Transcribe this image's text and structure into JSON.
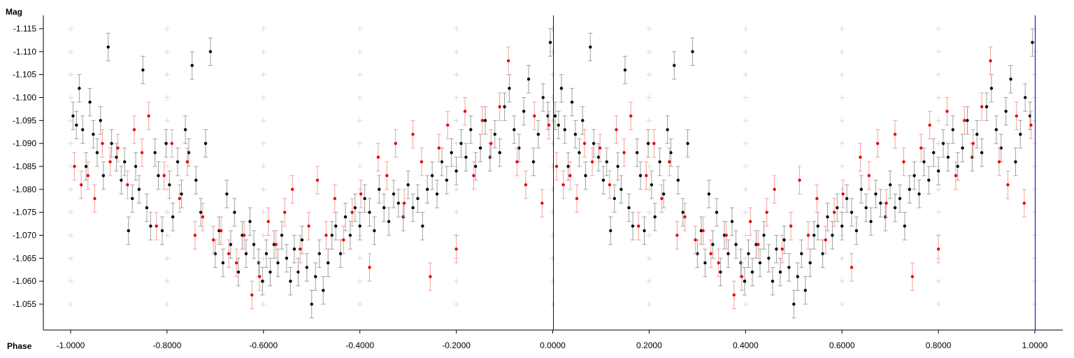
{
  "chart_data": {
    "type": "scatter",
    "title": "",
    "xlabel": "Phase",
    "ylabel": "Mag",
    "xlim": [
      -1.0,
      1.0
    ],
    "ylim": [
      -1.115,
      -1.055
    ],
    "y_axis_inverted": true,
    "grid": "light gray cross markers at tick intersections",
    "x_ticks": [
      "-1.0000",
      "-0.8000",
      "-0.6000",
      "-0.4000",
      "-0.2000",
      "0.0000",
      "0.2000",
      "0.4000",
      "0.6000",
      "0.8000",
      "1.0000"
    ],
    "y_ticks": [
      "-1.115",
      "-1.110",
      "-1.105",
      "-1.100",
      "-1.095",
      "-1.090",
      "-1.085",
      "-1.080",
      "-1.075",
      "-1.070",
      "-1.065",
      "-1.060",
      "-1.055"
    ],
    "vertical_markers": [
      0.0,
      1.0
    ],
    "marker_color": "#0000cc",
    "series": [
      {
        "color": "#000000",
        "error_color": "#a0a0a0",
        "points": [
          [
            0.005,
            -1.096,
            0.003
          ],
          [
            0.012,
            -1.094,
            0.003
          ],
          [
            0.018,
            -1.102,
            0.003
          ],
          [
            0.025,
            -1.093,
            0.003
          ],
          [
            0.032,
            -1.085,
            0.003
          ],
          [
            0.04,
            -1.099,
            0.003
          ],
          [
            0.047,
            -1.092,
            0.003
          ],
          [
            0.055,
            -1.088,
            0.003
          ],
          [
            0.062,
            -1.095,
            0.003
          ],
          [
            0.068,
            -1.083,
            0.003
          ],
          [
            0.078,
            -1.111,
            0.003
          ],
          [
            0.085,
            -1.09,
            0.003
          ],
          [
            0.095,
            -1.087,
            0.003
          ],
          [
            0.105,
            -1.082,
            0.003
          ],
          [
            0.112,
            -1.086,
            0.003
          ],
          [
            0.12,
            -1.071,
            0.003
          ],
          [
            0.128,
            -1.078,
            0.003
          ],
          [
            0.135,
            -1.085,
            0.003
          ],
          [
            0.142,
            -1.08,
            0.003
          ],
          [
            0.15,
            -1.106,
            0.003
          ],
          [
            0.158,
            -1.076,
            0.003
          ],
          [
            0.166,
            -1.072,
            0.003
          ],
          [
            0.175,
            -1.088,
            0.003
          ],
          [
            0.182,
            -1.083,
            0.003
          ],
          [
            0.19,
            -1.071,
            0.003
          ],
          [
            0.198,
            -1.09,
            0.003
          ],
          [
            0.205,
            -1.081,
            0.003
          ],
          [
            0.212,
            -1.074,
            0.003
          ],
          [
            0.222,
            -1.086,
            0.003
          ],
          [
            0.23,
            -1.079,
            0.003
          ],
          [
            0.238,
            -1.093,
            0.003
          ],
          [
            0.245,
            -1.088,
            0.003
          ],
          [
            0.252,
            -1.107,
            0.003
          ],
          [
            0.26,
            -1.082,
            0.003
          ],
          [
            0.27,
            -1.075,
            0.003
          ],
          [
            0.28,
            -1.09,
            0.003
          ],
          [
            0.29,
            -1.11,
            0.003
          ],
          [
            0.3,
            -1.066,
            0.003
          ],
          [
            0.308,
            -1.071,
            0.003
          ],
          [
            0.316,
            -1.064,
            0.003
          ],
          [
            0.324,
            -1.079,
            0.003
          ],
          [
            0.332,
            -1.068,
            0.003
          ],
          [
            0.34,
            -1.075,
            0.003
          ],
          [
            0.348,
            -1.062,
            0.003
          ],
          [
            0.356,
            -1.07,
            0.003
          ],
          [
            0.364,
            -1.066,
            0.003
          ],
          [
            0.372,
            -1.073,
            0.003
          ],
          [
            0.38,
            -1.068,
            0.003
          ],
          [
            0.39,
            -1.064,
            0.003
          ],
          [
            0.398,
            -1.06,
            0.003
          ],
          [
            0.406,
            -1.066,
            0.003
          ],
          [
            0.414,
            -1.062,
            0.003
          ],
          [
            0.422,
            -1.068,
            0.003
          ],
          [
            0.43,
            -1.064,
            0.003
          ],
          [
            0.438,
            -1.07,
            0.003
          ],
          [
            0.448,
            -1.065,
            0.003
          ],
          [
            0.456,
            -1.06,
            0.003
          ],
          [
            0.464,
            -1.067,
            0.003
          ],
          [
            0.472,
            -1.062,
            0.003
          ],
          [
            0.48,
            -1.069,
            0.003
          ],
          [
            0.49,
            -1.063,
            0.003
          ],
          [
            0.5,
            -1.055,
            0.003
          ],
          [
            0.508,
            -1.061,
            0.003
          ],
          [
            0.516,
            -1.066,
            0.003
          ],
          [
            0.524,
            -1.058,
            0.003
          ],
          [
            0.534,
            -1.064,
            0.003
          ],
          [
            0.542,
            -1.07,
            0.003
          ],
          [
            0.55,
            -1.072,
            0.003
          ],
          [
            0.56,
            -1.066,
            0.003
          ],
          [
            0.57,
            -1.074,
            0.003
          ],
          [
            0.58,
            -1.07,
            0.003
          ],
          [
            0.59,
            -1.076,
            0.003
          ],
          [
            0.6,
            -1.072,
            0.003
          ],
          [
            0.61,
            -1.078,
            0.003
          ],
          [
            0.62,
            -1.075,
            0.003
          ],
          [
            0.63,
            -1.071,
            0.003
          ],
          [
            0.64,
            -1.08,
            0.003
          ],
          [
            0.65,
            -1.076,
            0.003
          ],
          [
            0.66,
            -1.073,
            0.003
          ],
          [
            0.67,
            -1.079,
            0.003
          ],
          [
            0.68,
            -1.077,
            0.003
          ],
          [
            0.69,
            -1.074,
            0.003
          ],
          [
            0.7,
            -1.081,
            0.003
          ],
          [
            0.71,
            -1.076,
            0.003
          ],
          [
            0.72,
            -1.078,
            0.003
          ],
          [
            0.73,
            -1.072,
            0.003
          ],
          [
            0.74,
            -1.08,
            0.003
          ],
          [
            0.75,
            -1.083,
            0.003
          ],
          [
            0.76,
            -1.079,
            0.003
          ],
          [
            0.77,
            -1.086,
            0.003
          ],
          [
            0.78,
            -1.082,
            0.003
          ],
          [
            0.79,
            -1.088,
            0.003
          ],
          [
            0.8,
            -1.084,
            0.003
          ],
          [
            0.81,
            -1.09,
            0.003
          ],
          [
            0.82,
            -1.087,
            0.003
          ],
          [
            0.83,
            -1.093,
            0.003
          ],
          [
            0.84,
            -1.085,
            0.003
          ],
          [
            0.85,
            -1.089,
            0.003
          ],
          [
            0.86,
            -1.095,
            0.003
          ],
          [
            0.87,
            -1.087,
            0.003
          ],
          [
            0.88,
            -1.092,
            0.003
          ],
          [
            0.89,
            -1.088,
            0.003
          ],
          [
            0.9,
            -1.098,
            0.003
          ],
          [
            0.91,
            -1.102,
            0.003
          ],
          [
            0.92,
            -1.093,
            0.003
          ],
          [
            0.93,
            -1.089,
            0.003
          ],
          [
            0.94,
            -1.097,
            0.003
          ],
          [
            0.95,
            -1.104,
            0.003
          ],
          [
            0.96,
            -1.086,
            0.003
          ],
          [
            0.97,
            -1.092,
            0.003
          ],
          [
            0.98,
            -1.1,
            0.003
          ],
          [
            0.99,
            -1.096,
            0.003
          ],
          [
            0.995,
            -1.112,
            0.003
          ]
        ]
      },
      {
        "color": "#ee0000",
        "error_color": "#f0a0a0",
        "points": [
          [
            0.008,
            -1.085,
            0.003
          ],
          [
            0.022,
            -1.081,
            0.003
          ],
          [
            0.036,
            -1.083,
            0.003
          ],
          [
            0.05,
            -1.078,
            0.003
          ],
          [
            0.066,
            -1.09,
            0.003
          ],
          [
            0.082,
            -1.086,
            0.003
          ],
          [
            0.098,
            -1.089,
            0.003
          ],
          [
            0.118,
            -1.081,
            0.003
          ],
          [
            0.132,
            -1.093,
            0.003
          ],
          [
            0.148,
            -1.088,
            0.003
          ],
          [
            0.162,
            -1.096,
            0.003
          ],
          [
            0.178,
            -1.072,
            0.003
          ],
          [
            0.194,
            -1.083,
            0.003
          ],
          [
            0.21,
            -1.09,
            0.003
          ],
          [
            0.226,
            -1.078,
            0.003
          ],
          [
            0.242,
            -1.086,
            0.003
          ],
          [
            0.258,
            -1.07,
            0.003
          ],
          [
            0.274,
            -1.074,
            0.003
          ],
          [
            0.296,
            -1.069,
            0.003
          ],
          [
            0.312,
            -1.071,
            0.003
          ],
          [
            0.328,
            -1.066,
            0.003
          ],
          [
            0.344,
            -1.064,
            0.003
          ],
          [
            0.36,
            -1.07,
            0.003
          ],
          [
            0.376,
            -1.057,
            0.003
          ],
          [
            0.392,
            -1.061,
            0.003
          ],
          [
            0.41,
            -1.073,
            0.003
          ],
          [
            0.426,
            -1.068,
            0.003
          ],
          [
            0.444,
            -1.075,
            0.003
          ],
          [
            0.46,
            -1.08,
            0.003
          ],
          [
            0.476,
            -1.067,
            0.003
          ],
          [
            0.494,
            -1.072,
            0.003
          ],
          [
            0.512,
            -1.082,
            0.003
          ],
          [
            0.53,
            -1.07,
            0.003
          ],
          [
            0.548,
            -1.078,
            0.003
          ],
          [
            0.566,
            -1.069,
            0.003
          ],
          [
            0.584,
            -1.075,
            0.003
          ],
          [
            0.602,
            -1.079,
            0.003
          ],
          [
            0.62,
            -1.063,
            0.003
          ],
          [
            0.638,
            -1.087,
            0.003
          ],
          [
            0.656,
            -1.083,
            0.003
          ],
          [
            0.674,
            -1.09,
            0.003
          ],
          [
            0.692,
            -1.077,
            0.003
          ],
          [
            0.71,
            -1.092,
            0.003
          ],
          [
            0.728,
            -1.086,
            0.003
          ],
          [
            0.746,
            -1.061,
            0.003
          ],
          [
            0.764,
            -1.089,
            0.003
          ],
          [
            0.782,
            -1.094,
            0.003
          ],
          [
            0.8,
            -1.067,
            0.003
          ],
          [
            0.818,
            -1.097,
            0.003
          ],
          [
            0.836,
            -1.083,
            0.003
          ],
          [
            0.854,
            -1.095,
            0.003
          ],
          [
            0.872,
            -1.09,
            0.003
          ],
          [
            0.89,
            -1.098,
            0.003
          ],
          [
            0.908,
            -1.108,
            0.003
          ],
          [
            0.926,
            -1.086,
            0.003
          ],
          [
            0.944,
            -1.081,
            0.003
          ],
          [
            0.962,
            -1.096,
            0.003
          ],
          [
            0.978,
            -1.077,
            0.003
          ],
          [
            0.992,
            -1.094,
            0.003
          ]
        ]
      }
    ]
  }
}
